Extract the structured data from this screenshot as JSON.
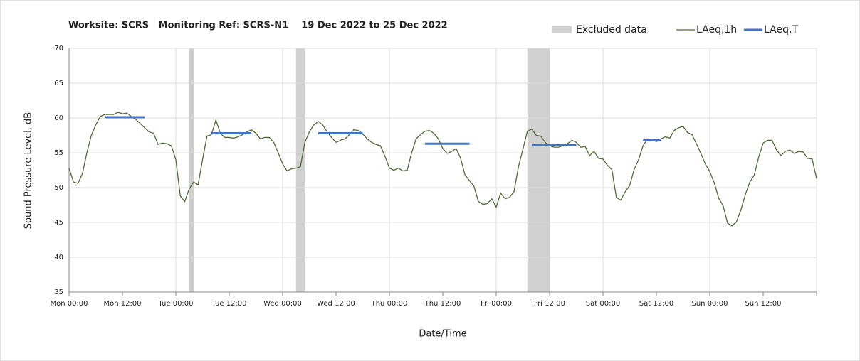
{
  "chart_data": {
    "type": "line",
    "title": "Worksite: SCRS   Monitoring Ref: SCRS-N1    19 Dec 2022 to 25 Dec 2022",
    "x_label": "Date/Time",
    "y_label": "Sound Pressure Level, dB",
    "ylim": [
      35,
      70
    ],
    "yticks": [
      35,
      40,
      45,
      50,
      55,
      60,
      65,
      70
    ],
    "grid": true,
    "legend": "top-right",
    "categories": [
      "Mon 00:00",
      null,
      null,
      null,
      null,
      null,
      null,
      null,
      null,
      null,
      null,
      null,
      "Mon 12:00",
      null,
      null,
      null,
      null,
      null,
      null,
      null,
      null,
      null,
      null,
      null,
      "Tue 00:00",
      null,
      null,
      null,
      null,
      null,
      null,
      null,
      null,
      null,
      null,
      null,
      "Tue 12:00",
      null,
      null,
      null,
      null,
      null,
      null,
      null,
      null,
      null,
      null,
      null,
      "Wed 00:00",
      null,
      null,
      null,
      null,
      null,
      null,
      null,
      null,
      null,
      null,
      null,
      "Wed 12:00",
      null,
      null,
      null,
      null,
      null,
      null,
      null,
      null,
      null,
      null,
      null,
      "Thu 00:00",
      null,
      null,
      null,
      null,
      null,
      null,
      null,
      null,
      null,
      null,
      null,
      "Thu 12:00",
      null,
      null,
      null,
      null,
      null,
      null,
      null,
      null,
      null,
      null,
      null,
      "Fri 00:00",
      null,
      null,
      null,
      null,
      null,
      null,
      null,
      null,
      null,
      null,
      null,
      "Fri 12:00",
      null,
      null,
      null,
      null,
      null,
      null,
      null,
      null,
      null,
      null,
      null,
      "Sat 00:00",
      null,
      null,
      null,
      null,
      null,
      null,
      null,
      null,
      null,
      null,
      null,
      "Sat 12:00",
      null,
      null,
      null,
      null,
      null,
      null,
      null,
      null,
      null,
      null,
      null,
      "Sun 00:00",
      null,
      null,
      null,
      null,
      null,
      null,
      null,
      null,
      null,
      null,
      null,
      "Sun 12:00",
      null,
      null,
      null,
      null,
      null,
      null,
      null,
      null,
      null,
      null,
      null,
      null
    ],
    "excluded": {
      "name": "Excluded data",
      "color": "#d0d0d0",
      "ranges": [
        [
          27,
          28
        ],
        [
          51,
          53
        ],
        [
          103,
          108
        ]
      ]
    },
    "series": [
      {
        "name": "LAeq,1h",
        "color": "#4f6b34",
        "values": [
          52.8,
          50.8,
          50.6,
          52,
          55,
          57.5,
          59,
          60.2,
          60.5,
          60.5,
          60.5,
          60.8,
          60.6,
          60.7,
          60.2,
          59.8,
          59.2,
          58.6,
          58,
          57.8,
          56.2,
          56.4,
          56.3,
          56,
          54,
          48.8,
          48,
          49.8,
          50.8,
          50.4,
          54,
          57.4,
          57.6,
          59.7,
          57.8,
          57.2,
          57.2,
          57.1,
          57.3,
          57.6,
          58,
          58.3,
          57.8,
          57,
          57.2,
          57.2,
          56.5,
          55,
          53.4,
          52.4,
          52.7,
          52.8,
          53,
          56.5,
          58,
          59,
          59.5,
          59,
          58,
          57.2,
          56.5,
          56.8,
          57,
          57.6,
          58.3,
          58.2,
          57.7,
          57,
          56.5,
          56.2,
          56,
          54.5,
          52.8,
          52.5,
          52.8,
          52.4,
          52.5,
          55,
          57,
          57.6,
          58.1,
          58.2,
          57.8,
          57,
          55.6,
          54.9,
          55.2,
          55.6,
          54.2,
          51.8,
          51,
          50.2,
          48,
          47.6,
          47.7,
          48.4,
          47.2,
          49.2,
          48.4,
          48.6,
          49.4,
          53,
          55.5,
          58.1,
          58.4,
          57.5,
          57.4,
          56.5,
          56,
          55.8,
          55.8,
          56,
          56.3,
          56.8,
          56.5,
          55.8,
          55.9,
          54.6,
          55.2,
          54.2,
          54.1,
          53.2,
          52.6,
          48.6,
          48.2,
          49.4,
          50.3,
          52.6,
          54,
          56,
          57,
          56.9,
          56.6,
          57,
          57.3,
          57.1,
          58.2,
          58.6,
          58.8,
          57.9,
          57.6,
          56.3,
          54.9,
          53.4,
          52.3,
          50.7,
          48.5,
          47.4,
          44.9,
          44.5,
          45.1,
          46.8,
          49,
          50.8,
          51.8,
          54.4,
          56.4,
          56.8,
          56.8,
          55.4,
          54.6,
          55.2,
          55.4,
          54.9,
          55.2,
          55.1,
          54.2,
          54.1,
          51.3
        ]
      },
      {
        "name": "LAeq,T",
        "color": "#4472c4",
        "values": [
          null,
          null,
          null,
          null,
          null,
          null,
          null,
          null,
          60.1,
          60.1,
          60.1,
          60.1,
          60.1,
          60.1,
          60.1,
          60.1,
          60.1,
          60.1,
          null,
          null,
          null,
          null,
          null,
          null,
          null,
          null,
          null,
          null,
          null,
          null,
          null,
          null,
          57.8,
          57.8,
          57.8,
          57.8,
          57.8,
          57.8,
          57.8,
          57.8,
          57.8,
          57.8,
          null,
          null,
          null,
          null,
          null,
          null,
          null,
          null,
          null,
          null,
          null,
          null,
          null,
          null,
          57.8,
          57.8,
          57.8,
          57.8,
          57.8,
          57.8,
          57.8,
          57.8,
          57.8,
          57.8,
          57.8,
          null,
          null,
          null,
          null,
          null,
          null,
          null,
          null,
          null,
          null,
          null,
          null,
          null,
          56.3,
          56.3,
          56.3,
          56.3,
          56.3,
          56.3,
          56.3,
          56.3,
          56.3,
          56.3,
          56.3,
          null,
          null,
          null,
          null,
          null,
          null,
          null,
          null,
          null,
          null,
          null,
          null,
          null,
          56.1,
          56.1,
          56.1,
          56.1,
          56.1,
          56.1,
          56.1,
          56.1,
          56.1,
          56.1,
          56.1,
          null,
          null,
          null,
          null,
          null,
          null,
          null,
          null,
          null,
          null,
          null,
          null,
          null,
          null,
          56.8,
          56.8,
          56.8,
          56.8,
          56.8,
          null,
          null,
          null,
          null,
          null,
          null,
          null,
          null,
          null,
          null,
          null,
          null,
          null,
          null,
          null,
          null,
          null,
          null,
          null,
          null,
          null,
          null,
          null,
          null,
          null,
          null,
          null,
          null,
          null,
          null,
          null,
          null,
          null,
          null,
          null
        ]
      }
    ]
  }
}
